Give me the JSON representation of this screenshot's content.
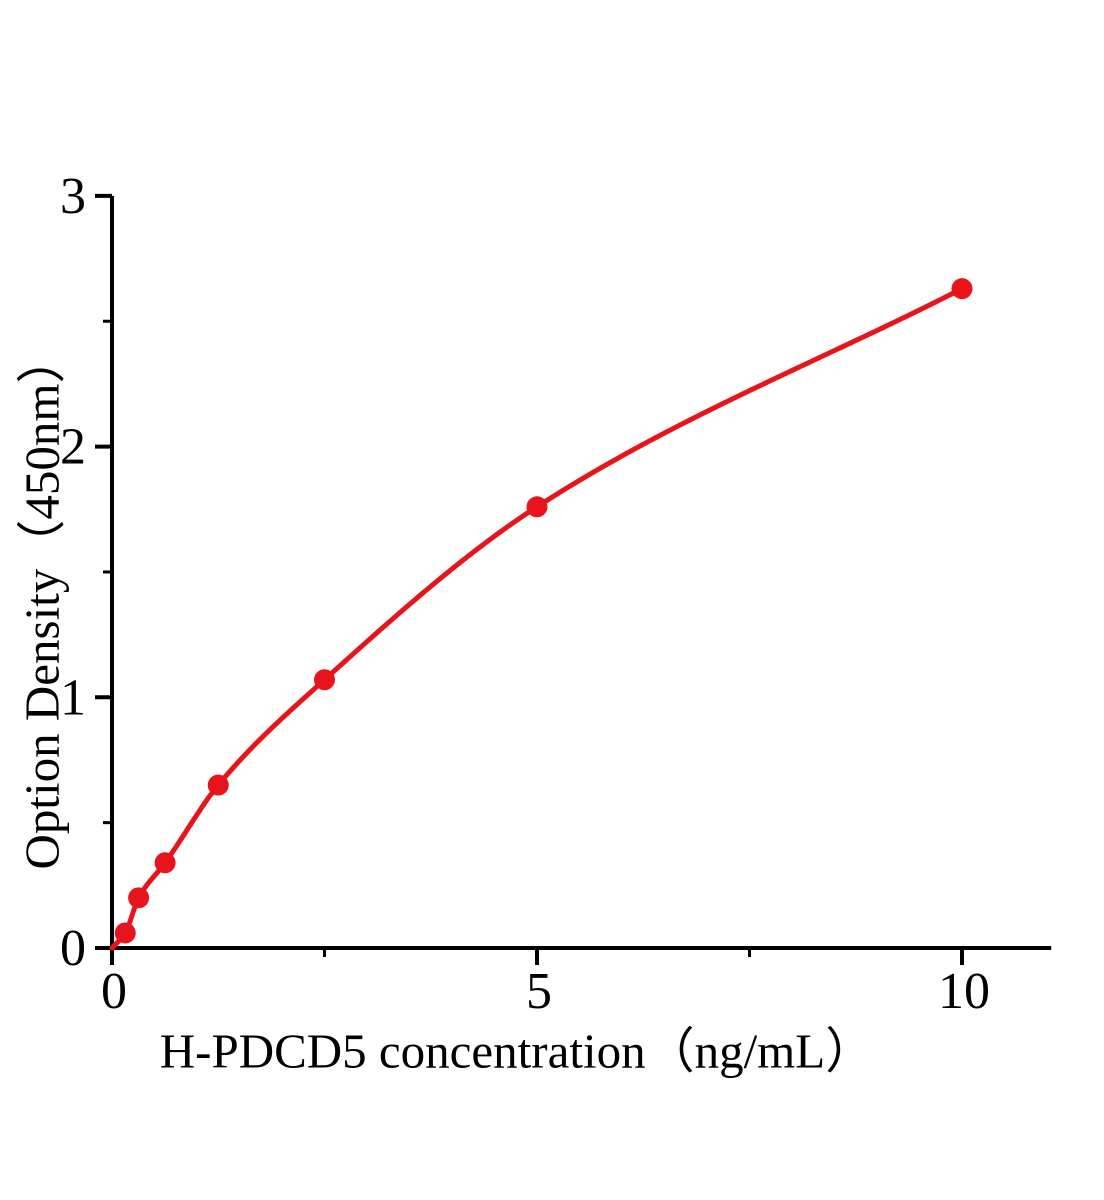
{
  "figure": {
    "background": "#ffffff"
  },
  "chart_data": {
    "type": "scatter",
    "subtype": "standard-curve-with-fitted-line",
    "title": "",
    "xlabel": "H-PDCD5 concentration（ng/mL）",
    "ylabel": "Option Density（450nm）",
    "x": [
      0.156,
      0.313,
      0.625,
      1.25,
      2.5,
      5,
      10
    ],
    "y": [
      0.06,
      0.2,
      0.34,
      0.65,
      1.07,
      1.76,
      2.63
    ],
    "curve_start": {
      "x": 0,
      "y": 0
    },
    "xlim": [
      0,
      11.05
    ],
    "ylim": [
      0,
      3
    ],
    "x_major_ticks": [
      0,
      5,
      10
    ],
    "x_tick_labels": [
      "0",
      "5",
      "10"
    ],
    "x_minor_ticks": [
      2.5,
      7.5
    ],
    "y_major_ticks": [
      0,
      1,
      2,
      3
    ],
    "y_tick_labels": [
      "0",
      "1",
      "2",
      "3"
    ],
    "y_minor_ticks": [
      0.5,
      1.5,
      2.5
    ],
    "grid": false,
    "legend": null,
    "line_color": "#e8141b",
    "marker_color": "#e8141b",
    "marker": "circle",
    "axis_color": "#000000",
    "tick_label_color": "#000000"
  }
}
